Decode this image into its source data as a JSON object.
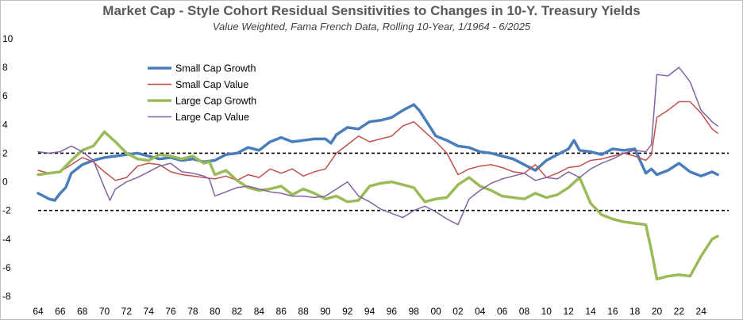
{
  "chart_data": {
    "type": "line",
    "title": "Market Cap - Style Cohort Residual Sensitivities to Changes in 10-Y. Treasury Yields",
    "subtitle": "Value Weighted, Fama French Data, Rolling 10-Year, 1/1964 - 6/2025",
    "xlim": [
      1964,
      2026.5
    ],
    "ylim": [
      -8,
      10
    ],
    "y_ticks": [
      -8,
      -6,
      -4,
      -2,
      0,
      2,
      4,
      6,
      8,
      10
    ],
    "x_ticks": [
      1964,
      1966,
      1968,
      1970,
      1972,
      1974,
      1976,
      1978,
      1980,
      1982,
      1984,
      1986,
      1988,
      1990,
      1992,
      1994,
      1996,
      1998,
      2000,
      2002,
      2004,
      2006,
      2008,
      2010,
      2012,
      2014,
      2016,
      2018,
      2020,
      2022,
      2024
    ],
    "x_tick_labels": [
      "64",
      "66",
      "68",
      "70",
      "72",
      "74",
      "76",
      "78",
      "80",
      "82",
      "84",
      "86",
      "88",
      "90",
      "92",
      "94",
      "96",
      "98",
      "00",
      "02",
      "04",
      "06",
      "08",
      "10",
      "12",
      "14",
      "16",
      "18",
      "20",
      "22",
      "24"
    ],
    "reference_lines": [
      2,
      -2
    ],
    "legend_placement": "top-left",
    "series": [
      {
        "name": "Small Cap Growth",
        "color": "#4a7ebb",
        "width": 3.5,
        "x": [
          1964,
          1965,
          1965.5,
          1966,
          1966.5,
          1967,
          1968,
          1969,
          1970,
          1971,
          1972,
          1973,
          1974,
          1975,
          1976,
          1977,
          1978,
          1979,
          1980,
          1981,
          1982,
          1983,
          1984,
          1985,
          1986,
          1987,
          1988,
          1989,
          1990,
          1990.5,
          1991,
          1992,
          1993,
          1994,
          1995,
          1996,
          1997,
          1998,
          1998.5,
          1999,
          2000,
          2001,
          2002,
          2003,
          2004,
          2005,
          2006,
          2007,
          2008,
          2009,
          2010,
          2011,
          2012,
          2012.5,
          2013,
          2014,
          2015,
          2016,
          2017,
          2018,
          2019,
          2019.5,
          2020,
          2021,
          2022,
          2023,
          2024,
          2025,
          2025.5
        ],
        "y": [
          -0.8,
          -1.2,
          -1.3,
          -0.8,
          -0.4,
          0.6,
          1.2,
          1.5,
          1.7,
          1.8,
          1.9,
          2.0,
          1.8,
          1.6,
          1.7,
          1.5,
          1.6,
          1.4,
          1.5,
          1.9,
          2.0,
          2.4,
          2.2,
          2.8,
          3.1,
          2.8,
          2.9,
          3.0,
          3.0,
          2.7,
          3.3,
          3.8,
          3.7,
          4.2,
          4.3,
          4.5,
          5.0,
          5.4,
          5.0,
          4.4,
          3.2,
          2.9,
          2.5,
          2.4,
          2.1,
          2.0,
          1.8,
          1.6,
          1.2,
          0.8,
          1.5,
          1.9,
          2.3,
          2.9,
          2.2,
          2.1,
          1.9,
          2.3,
          2.2,
          2.3,
          0.6,
          0.9,
          0.5,
          0.8,
          1.3,
          0.7,
          0.4,
          0.7,
          0.5
        ]
      },
      {
        "name": "Small Cap Value",
        "color": "#c0504d",
        "width": 1.5,
        "x": [
          1964,
          1965,
          1966,
          1967,
          1968,
          1969,
          1970,
          1971,
          1972,
          1973,
          1974,
          1975,
          1976,
          1977,
          1978,
          1979,
          1980,
          1981,
          1982,
          1983,
          1984,
          1985,
          1986,
          1987,
          1988,
          1989,
          1990,
          1991,
          1992,
          1993,
          1994,
          1995,
          1996,
          1997,
          1998,
          1999,
          2000,
          2001,
          2002,
          2003,
          2004,
          2005,
          2006,
          2007,
          2008,
          2009,
          2010,
          2011,
          2012,
          2013,
          2014,
          2015,
          2016,
          2017,
          2018,
          2019,
          2019.5,
          2020,
          2021,
          2022,
          2023,
          2024,
          2025,
          2025.5
        ],
        "y": [
          0.8,
          0.6,
          0.7,
          1.2,
          1.7,
          1.4,
          0.7,
          0.1,
          0.3,
          1.1,
          1.3,
          1.2,
          0.7,
          0.5,
          0.4,
          0.3,
          0.2,
          0.4,
          0.1,
          0.5,
          0.3,
          0.9,
          0.6,
          0.9,
          0.4,
          0.7,
          0.9,
          2.0,
          2.6,
          3.2,
          2.8,
          3.0,
          3.2,
          3.9,
          4.2,
          3.5,
          2.8,
          2.0,
          0.5,
          0.9,
          1.1,
          1.2,
          1.0,
          0.7,
          0.6,
          1.2,
          0.3,
          0.6,
          1.0,
          1.1,
          1.5,
          1.6,
          1.8,
          2.0,
          1.8,
          1.5,
          1.9,
          4.5,
          5.0,
          5.6,
          5.6,
          4.8,
          3.7,
          3.4
        ]
      },
      {
        "name": "Large Cap Growth",
        "color": "#9bbb59",
        "width": 3.5,
        "x": [
          1964,
          1965,
          1966,
          1967,
          1968,
          1969,
          1970,
          1971,
          1972,
          1973,
          1974,
          1975,
          1976,
          1977,
          1978,
          1979,
          1979.5,
          1980,
          1981,
          1982,
          1983,
          1984,
          1985,
          1986,
          1987,
          1988,
          1989,
          1990,
          1991,
          1992,
          1993,
          1994,
          1995,
          1996,
          1997,
          1998,
          1998.5,
          1999,
          2000,
          2001,
          2002,
          2003,
          2004,
          2005,
          2006,
          2007,
          2008,
          2009,
          2010,
          2011,
          2012,
          2013,
          2014,
          2015,
          2016,
          2017,
          2018,
          2019,
          2019.5,
          2020,
          2021,
          2022,
          2023,
          2024,
          2025,
          2025.5
        ],
        "y": [
          0.5,
          0.6,
          0.7,
          1.5,
          2.2,
          2.5,
          3.5,
          2.8,
          2.0,
          1.6,
          1.5,
          1.9,
          1.8,
          1.6,
          1.8,
          1.3,
          1.4,
          0.5,
          0.8,
          0.1,
          -0.4,
          -0.6,
          -0.5,
          -0.3,
          -0.9,
          -0.5,
          -0.8,
          -1.2,
          -1.0,
          -1.4,
          -1.3,
          -0.3,
          -0.1,
          0.0,
          -0.2,
          -0.4,
          -0.9,
          -1.4,
          -1.2,
          -1.1,
          -0.2,
          0.3,
          -0.3,
          -0.6,
          -1.0,
          -1.1,
          -1.2,
          -0.8,
          -1.1,
          -0.9,
          -0.4,
          0.3,
          -1.5,
          -2.3,
          -2.6,
          -2.8,
          -2.9,
          -3.0,
          -4.8,
          -6.8,
          -6.6,
          -6.5,
          -6.6,
          -5.2,
          -4.0,
          -3.8
        ]
      },
      {
        "name": "Large Cap Value",
        "color": "#8064a2",
        "width": 1.5,
        "x": [
          1964,
          1965,
          1966,
          1967,
          1968,
          1969,
          1970,
          1970.5,
          1971,
          1972,
          1973,
          1974,
          1975,
          1976,
          1977,
          1978,
          1979,
          1979.5,
          1980,
          1981,
          1982,
          1983,
          1984,
          1985,
          1986,
          1987,
          1988,
          1989,
          1990,
          1991,
          1992,
          1993,
          1994,
          1995,
          1996,
          1997,
          1998,
          1999,
          2000,
          2001,
          2002,
          2003,
          2004,
          2005,
          2006,
          2007,
          2008,
          2009,
          2010,
          2011,
          2012,
          2013,
          2014,
          2015,
          2016,
          2017,
          2018,
          2019,
          2019.5,
          2020,
          2021,
          2022,
          2023,
          2024,
          2025,
          2025.5
        ],
        "y": [
          2.1,
          2.0,
          2.1,
          2.5,
          2.1,
          1.5,
          -0.4,
          -1.3,
          -0.5,
          0.0,
          0.3,
          0.7,
          1.1,
          1.3,
          0.7,
          0.6,
          0.4,
          0.2,
          -1.0,
          -0.7,
          -0.4,
          -0.3,
          -0.5,
          -0.7,
          -0.8,
          -1.0,
          -1.0,
          -1.1,
          -1.0,
          -0.5,
          0.0,
          -1.0,
          -1.4,
          -1.9,
          -2.2,
          -2.5,
          -2.0,
          -1.7,
          -2.1,
          -2.6,
          -3.0,
          -1.2,
          -0.6,
          -0.1,
          0.2,
          0.4,
          0.6,
          0.1,
          0.3,
          0.2,
          0.7,
          0.3,
          0.9,
          1.3,
          1.6,
          2.0,
          2.2,
          2.1,
          2.6,
          7.5,
          7.4,
          8.0,
          7.0,
          5.0,
          4.2,
          3.9
        ]
      }
    ]
  }
}
